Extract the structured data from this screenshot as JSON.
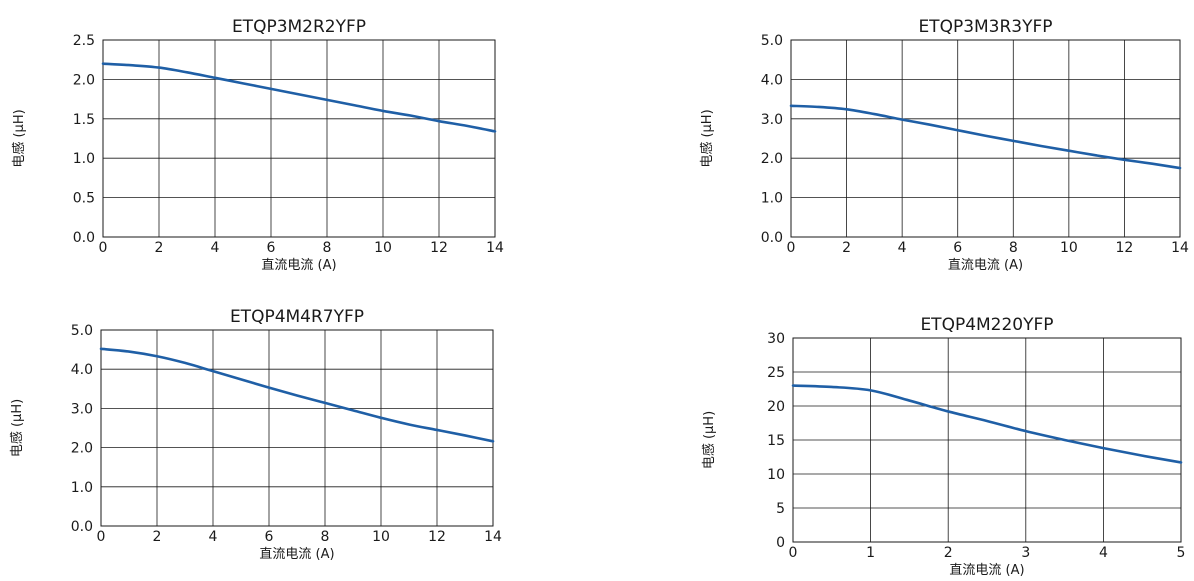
{
  "chart_data": [
    {
      "type": "line",
      "title": "ETQP3M2R2YFP",
      "xlabel": "直流电流 (A)",
      "ylabel": "电感 (µH)",
      "xlim": [
        0,
        14
      ],
      "ylim": [
        0,
        2.5
      ],
      "xticks": [
        "0",
        "2",
        "4",
        "6",
        "8",
        "10",
        "12",
        "14"
      ],
      "yticks": [
        "0.0",
        "0.5",
        "1.0",
        "1.5",
        "2.0",
        "2.5"
      ],
      "grid": true,
      "color": "#1f5fa6",
      "series": [
        {
          "x": [
            0,
            1,
            2,
            3,
            4,
            5,
            6,
            7,
            8,
            9,
            10,
            11,
            12,
            13,
            14
          ],
          "y": [
            2.2,
            2.18,
            2.15,
            2.09,
            2.02,
            1.95,
            1.88,
            1.81,
            1.74,
            1.67,
            1.6,
            1.54,
            1.47,
            1.41,
            1.34
          ]
        }
      ]
    },
    {
      "type": "line",
      "title": "ETQP3M3R3YFP",
      "xlabel": "直流电流 (A)",
      "ylabel": "电感 (µH)",
      "xlim": [
        0,
        14
      ],
      "ylim": [
        0,
        5
      ],
      "xticks": [
        "0",
        "2",
        "4",
        "6",
        "8",
        "10",
        "12",
        "14"
      ],
      "yticks": [
        "0.0",
        "1.0",
        "2.0",
        "3.0",
        "4.0",
        "5.0"
      ],
      "grid": true,
      "color": "#1f5fa6",
      "series": [
        {
          "x": [
            0,
            1,
            2,
            3,
            4,
            5,
            6,
            7,
            8,
            9,
            10,
            11,
            12,
            13,
            14
          ],
          "y": [
            3.33,
            3.3,
            3.24,
            3.12,
            2.98,
            2.85,
            2.71,
            2.57,
            2.44,
            2.31,
            2.19,
            2.07,
            1.96,
            1.86,
            1.75
          ]
        }
      ]
    },
    {
      "type": "line",
      "title": "ETQP4M4R7YFP",
      "xlabel": "直流电流 (A)",
      "ylabel": "电感 (µH)",
      "xlim": [
        0,
        14
      ],
      "ylim": [
        0,
        5
      ],
      "xticks": [
        "0",
        "2",
        "4",
        "6",
        "8",
        "10",
        "12",
        "14"
      ],
      "yticks": [
        "0.0",
        "1.0",
        "2.0",
        "3.0",
        "4.0",
        "5.0"
      ],
      "grid": true,
      "color": "#1f5fa6",
      "series": [
        {
          "x": [
            0,
            1,
            2,
            3,
            4,
            5,
            6,
            7,
            8,
            9,
            10,
            11,
            12,
            13,
            14
          ],
          "y": [
            4.52,
            4.45,
            4.33,
            4.16,
            3.95,
            3.74,
            3.53,
            3.33,
            3.14,
            2.95,
            2.76,
            2.59,
            2.45,
            2.31,
            2.16
          ]
        }
      ]
    },
    {
      "type": "line",
      "title": "ETQP4M220YFP",
      "xlabel": "直流电流 (A)",
      "ylabel": "电感 (µH)",
      "xlim": [
        0,
        5
      ],
      "ylim": [
        0,
        30
      ],
      "xticks": [
        "0",
        "1",
        "2",
        "3",
        "4",
        "5"
      ],
      "yticks": [
        "0",
        "5",
        "10",
        "15",
        "20",
        "25",
        "30"
      ],
      "grid": true,
      "color": "#1f5fa6",
      "series": [
        {
          "x": [
            0,
            0.5,
            1,
            1.5,
            2,
            2.5,
            3,
            3.5,
            4,
            4.5,
            5
          ],
          "y": [
            23,
            22.8,
            22.3,
            20.8,
            19.2,
            17.8,
            16.3,
            15.0,
            13.8,
            12.7,
            11.7
          ]
        }
      ]
    }
  ]
}
